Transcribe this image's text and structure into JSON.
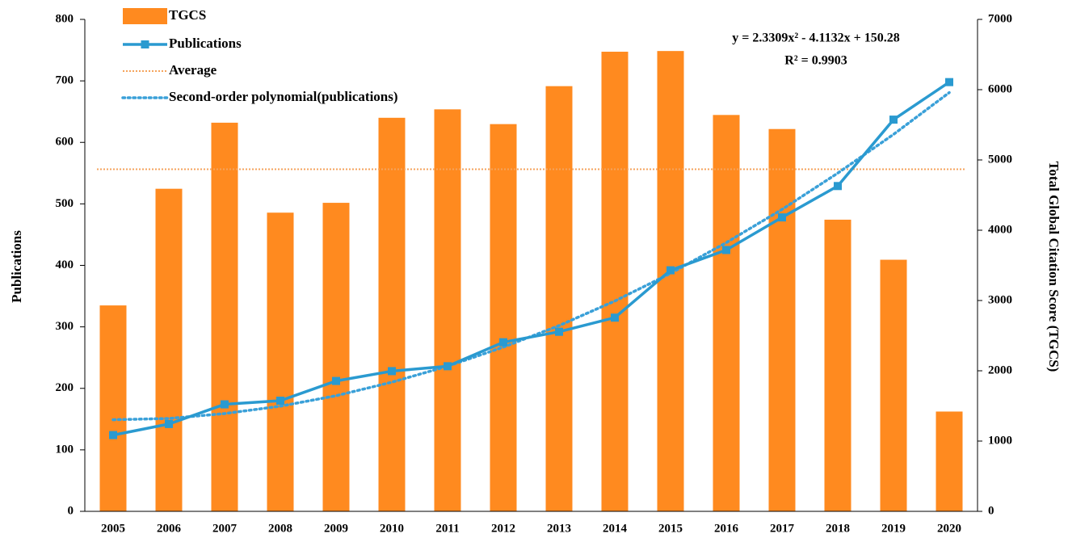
{
  "chart_data": {
    "type": "bar",
    "categories": [
      "2005",
      "2006",
      "2007",
      "2008",
      "2009",
      "2010",
      "2011",
      "2012",
      "2013",
      "2014",
      "2015",
      "2016",
      "2017",
      "2018",
      "2019",
      "2020"
    ],
    "series": [
      {
        "name": "TGCS",
        "type": "bar",
        "axis": "y2",
        "color": "#ff8a1f",
        "values": [
          2930,
          4590,
          5530,
          4250,
          4390,
          5600,
          5720,
          5510,
          6050,
          6540,
          6550,
          5640,
          5440,
          4150,
          3580,
          1420
        ]
      },
      {
        "name": "Publications",
        "type": "line",
        "color": "#2a9ad0",
        "values": [
          124,
          142,
          174,
          180,
          212,
          228,
          236,
          275,
          292,
          315,
          392,
          425,
          478,
          529,
          637,
          698
        ]
      },
      {
        "name": "Average",
        "type": "hline",
        "axis": "y2",
        "color": "#f5a35c",
        "value": 4868
      },
      {
        "name": "Second-order polynomial(publications)",
        "type": "trend",
        "color": "#3aa0d8",
        "values": [
          149,
          151,
          159,
          171,
          188,
          210,
          236,
          267,
          302,
          342,
          387,
          437,
          491,
          550,
          613,
          681
        ]
      }
    ],
    "annotations": [
      "y = 2.3309x² - 4.1132x + 150.28",
      "R² = 0.9903"
    ],
    "ylabel": "Publications",
    "y2label": "Total Global Citation Score (TGCS)",
    "ylim": [
      0,
      800
    ],
    "yticks": [
      0,
      100,
      200,
      300,
      400,
      500,
      600,
      700,
      800
    ],
    "y2lim": [
      0,
      7000
    ],
    "y2ticks": [
      0,
      1000,
      2000,
      3000,
      4000,
      5000,
      6000,
      7000
    ],
    "legend": "upper left"
  }
}
